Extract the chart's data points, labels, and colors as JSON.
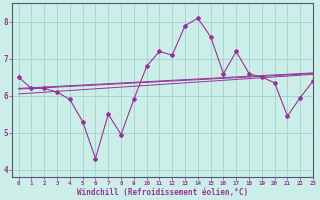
{
  "xlabel": "Windchill (Refroidissement éolien,°C)",
  "bg_color": "#cceee8",
  "line_color": "#993399",
  "grid_color": "#99cccc",
  "xlim": [
    -0.5,
    23
  ],
  "ylim": [
    3.8,
    8.5
  ],
  "yticks": [
    4,
    5,
    6,
    7,
    8
  ],
  "xticks": [
    0,
    1,
    2,
    3,
    4,
    5,
    6,
    7,
    8,
    9,
    10,
    11,
    12,
    13,
    14,
    15,
    16,
    17,
    18,
    19,
    20,
    21,
    22,
    23
  ],
  "main_data": [
    6.5,
    6.2,
    6.2,
    6.1,
    5.9,
    5.3,
    4.3,
    5.5,
    4.95,
    5.9,
    6.8,
    7.2,
    7.1,
    7.9,
    8.1,
    7.6,
    6.6,
    7.2,
    6.6,
    6.5,
    6.35,
    5.45,
    5.95,
    6.4
  ],
  "reg1_start": 6.2,
  "reg1_end": 6.62,
  "reg2_start": 6.18,
  "reg2_end": 6.6,
  "reg3_start": 6.05,
  "reg3_end": 6.58
}
